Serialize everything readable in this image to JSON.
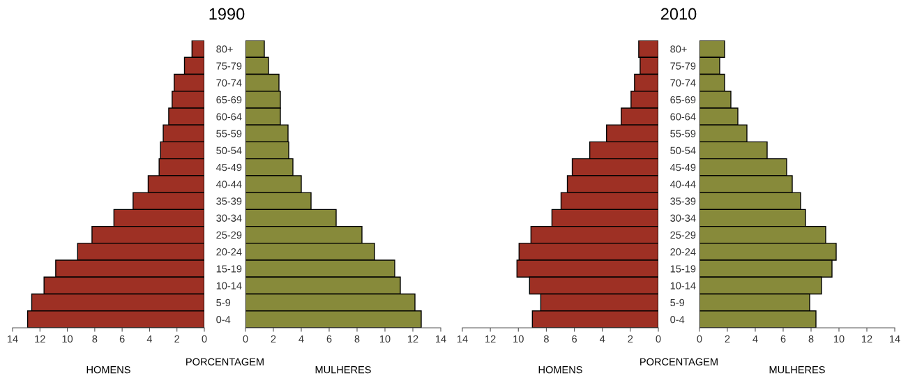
{
  "chart_data": [
    {
      "type": "bar",
      "orientation": "horizontal",
      "title": "1990",
      "xlabel": "HOMENS",
      "annotations": [
        "PORCENTAGEM"
      ],
      "categories": [
        "80+",
        "75-79",
        "70-74",
        "65-69",
        "60-64",
        "55-59",
        "50-54",
        "45-49",
        "40-44",
        "35-39",
        "30-34",
        "25-29",
        "20-24",
        "15-19",
        "10-14",
        "5-9",
        "0-4"
      ],
      "values": [
        0.9,
        1.45,
        2.2,
        2.35,
        2.6,
        3.0,
        3.2,
        3.3,
        4.1,
        5.2,
        6.6,
        8.2,
        9.25,
        10.85,
        11.7,
        12.6,
        12.9
      ],
      "color": "#9e3024",
      "xlim": [
        14,
        0
      ],
      "xticks": [
        14,
        12,
        10,
        8,
        6,
        4,
        2,
        0
      ]
    },
    {
      "type": "bar",
      "orientation": "horizontal",
      "xlabel": "MULHERES",
      "categories": [
        null,
        null,
        null,
        null,
        null,
        null,
        null,
        null,
        null,
        null,
        null,
        null,
        null,
        null,
        null,
        null,
        null
      ],
      "values": [
        1.35,
        1.65,
        2.4,
        2.5,
        2.5,
        3.05,
        3.1,
        3.4,
        4.0,
        4.7,
        6.5,
        8.35,
        9.25,
        10.7,
        11.1,
        12.15,
        12.6
      ],
      "color": "#878a3a",
      "xlim": [
        0,
        14
      ],
      "xticks": [
        0,
        2,
        4,
        6,
        8,
        10,
        12,
        14
      ]
    },
    {
      "type": "bar",
      "orientation": "horizontal",
      "title": "2010",
      "xlabel": "HOMENS",
      "annotations": [
        "PORCENTAGEM"
      ],
      "categories": [
        "80+",
        "75-79",
        "70-74",
        "65-69",
        "60-64",
        "55-59",
        "50-54",
        "45-49",
        "40-44",
        "35-39",
        "30-34",
        "25-29",
        "20-24",
        "15-19",
        "10-14",
        "5-9",
        "0-4"
      ],
      "values": [
        1.4,
        1.3,
        1.7,
        1.95,
        2.65,
        3.7,
        4.9,
        6.15,
        6.5,
        6.95,
        7.6,
        9.1,
        9.95,
        10.1,
        9.2,
        8.4,
        9.0
      ],
      "color": "#9e3024",
      "xlim": [
        14,
        0
      ],
      "xticks": [
        14,
        12,
        10,
        8,
        6,
        4,
        2,
        0
      ]
    },
    {
      "type": "bar",
      "orientation": "horizontal",
      "xlabel": "MULHERES",
      "categories": [
        null,
        null,
        null,
        null,
        null,
        null,
        null,
        null,
        null,
        null,
        null,
        null,
        null,
        null,
        null,
        null,
        null
      ],
      "values": [
        1.8,
        1.45,
        1.8,
        2.25,
        2.75,
        3.4,
        4.85,
        6.25,
        6.65,
        7.25,
        7.6,
        9.05,
        9.8,
        9.5,
        8.75,
        7.9,
        8.35
      ],
      "color": "#878a3a",
      "xlim": [
        0,
        14
      ],
      "xticks": [
        0,
        2,
        4,
        6,
        8,
        10,
        12,
        14
      ]
    }
  ]
}
